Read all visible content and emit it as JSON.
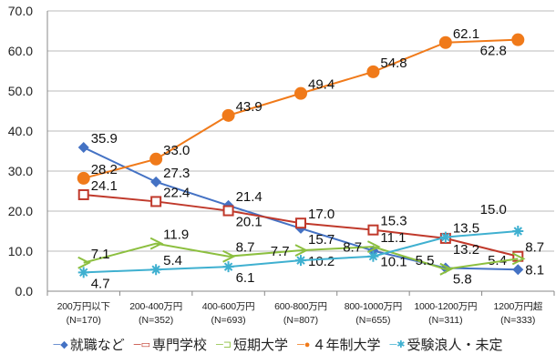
{
  "chart_data": {
    "type": "line",
    "title": "",
    "xlabel": "",
    "ylabel": "",
    "ylim": [
      0,
      70
    ],
    "yticks": [
      "0.0",
      "10.0",
      "20.0",
      "30.0",
      "40.0",
      "50.0",
      "60.0",
      "70.0"
    ],
    "grid": true,
    "legend_position": "bottom",
    "categories": [
      "200万円以下",
      "200-400万円",
      "400-600万円",
      "600-800万円",
      "800-1000万円",
      "1000-1200万円",
      "1200万円超"
    ],
    "category_n": [
      "(N=170)",
      "(N=352)",
      "(N=693)",
      "(N=807)",
      "(N=655)",
      "(N=311)",
      "(N=333)"
    ],
    "series": [
      {
        "name": "就職など",
        "color": "#4472c4",
        "marker": "diamond",
        "values": [
          35.9,
          27.3,
          21.4,
          15.7,
          10.1,
          5.8,
          5.4
        ]
      },
      {
        "name": "専門学校",
        "color": "#c0392b",
        "marker": "square",
        "values": [
          24.1,
          22.4,
          20.1,
          17.0,
          15.3,
          13.2,
          8.7
        ]
      },
      {
        "name": "短期大学",
        "color": "#8cbf3f",
        "marker": "triangle",
        "values": [
          7.1,
          11.9,
          8.7,
          10.2,
          11.1,
          5.5,
          8.1
        ]
      },
      {
        "name": "４年制大学",
        "color": "#f07a1a",
        "marker": "circle",
        "values": [
          28.2,
          33.0,
          43.9,
          49.4,
          54.8,
          62.1,
          62.8
        ]
      },
      {
        "name": "受験浪人・未定",
        "color": "#3fb0d0",
        "marker": "star",
        "values": [
          4.7,
          5.4,
          6.1,
          7.7,
          8.7,
          13.5,
          15.0
        ]
      }
    ]
  }
}
